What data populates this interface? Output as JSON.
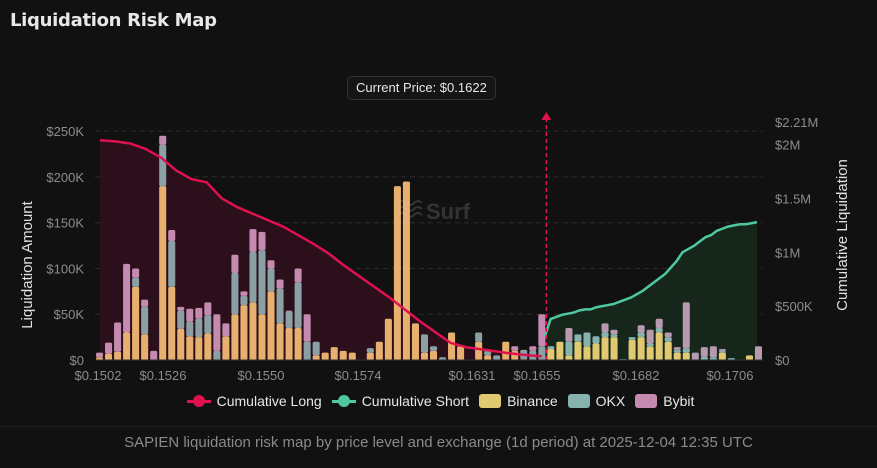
{
  "header": {
    "title": "Liquidation Risk Map"
  },
  "current_price": {
    "label": "Current Price: $0.1622",
    "value": 0.1622
  },
  "caption": "SAPIEN liquidation risk map by price level and exchange (1d period) at 2025-12-04 12:35 UTC",
  "watermark": "Surf",
  "colors": {
    "binance_long": "#e8b06f",
    "binance_short": "#e0c970",
    "okx": "#86b3ad",
    "okx_long": "#8aa0a5",
    "bybit": "#c48ab0",
    "bybit_short": "#b89ab0",
    "cum_long": "#e0114f",
    "cum_short": "#4ec9a0",
    "long_fill": "#2b0f1a",
    "short_fill": "#17261a"
  },
  "legend": [
    {
      "label": "Cumulative Long",
      "type": "line",
      "color": "#e0114f"
    },
    {
      "label": "Cumulative Short",
      "type": "line",
      "color": "#4ec9a0"
    },
    {
      "label": "Binance",
      "type": "box",
      "color": "#e0c970"
    },
    {
      "label": "OKX",
      "type": "box",
      "color": "#86b3ad"
    },
    {
      "label": "Bybit",
      "type": "box",
      "color": "#c48ab0"
    }
  ],
  "chart_data": {
    "type": "bar",
    "stacked": true,
    "title": "Liquidation Risk Map",
    "xlabel": "",
    "ylabel": "Liquidation Amount",
    "y2label": "Cumulative Liquidation",
    "ylim": [
      0,
      260000
    ],
    "y2lim": [
      0,
      2210000
    ],
    "yticks": [
      "$0",
      "$50K",
      "$100K",
      "$150K",
      "$200K",
      "$250K"
    ],
    "y2ticks": [
      "$0",
      "$500K",
      "$1M",
      "$1.5M",
      "$2M",
      "$2.21M"
    ],
    "xticks": [
      "$0.1502",
      "$0.1526",
      "$0.1550",
      "$0.1574",
      "$0.1631",
      "$0.1655",
      "$0.1682",
      "$0.1706"
    ],
    "current_price_index": 49,
    "series": [
      {
        "name": "Binance",
        "values": [
          3000,
          7000,
          9000,
          30000,
          80000,
          28000,
          0,
          190000,
          80000,
          34000,
          26000,
          25000,
          29000,
          0,
          26000,
          50000,
          60000,
          63000,
          50000,
          75000,
          40000,
          35000,
          35000,
          0,
          5000,
          8000,
          14000,
          10000,
          8000,
          0,
          8000,
          20000,
          45000,
          190000,
          195000,
          40000,
          8000,
          10000,
          0,
          30000,
          15000,
          0,
          20000,
          5000,
          0,
          20000,
          10000,
          1000,
          0,
          0,
          12000,
          20000,
          5000,
          20000,
          15000,
          18000,
          25000,
          25000,
          0,
          22000,
          25000,
          15000,
          30000,
          20000,
          8000,
          8000,
          0,
          0,
          0,
          8000,
          0,
          0,
          5000,
          0
        ]
      },
      {
        "name": "OKX",
        "values": [
          0,
          0,
          0,
          0,
          10000,
          30000,
          0,
          45000,
          50000,
          20000,
          16000,
          20000,
          20000,
          10000,
          0,
          45000,
          10000,
          55000,
          70000,
          25000,
          38000,
          18000,
          50000,
          20000,
          15000,
          0,
          0,
          0,
          0,
          0,
          5000,
          0,
          0,
          0,
          0,
          0,
          20000,
          5000,
          3000,
          0,
          0,
          0,
          10000,
          5000,
          5000,
          0,
          0,
          10000,
          10000,
          15000,
          3000,
          0,
          15000,
          8000,
          15000,
          8000,
          5000,
          3000,
          1000,
          3000,
          5000,
          3000,
          5000,
          5000,
          3000,
          5000,
          0,
          4000,
          3000,
          2000,
          2000,
          0,
          0,
          0
        ]
      },
      {
        "name": "Bybit",
        "values": [
          5000,
          12000,
          32000,
          75000,
          10000,
          8000,
          10000,
          10000,
          12000,
          4000,
          14000,
          12000,
          14000,
          40000,
          14000,
          20000,
          5000,
          25000,
          20000,
          9000,
          10000,
          1000,
          15000,
          30000,
          0,
          0,
          0,
          0,
          0,
          0,
          0,
          0,
          0,
          0,
          0,
          0,
          0,
          0,
          0,
          0,
          0,
          0,
          0,
          0,
          0,
          0,
          5000,
          0,
          5000,
          35000,
          0,
          0,
          15000,
          0,
          0,
          0,
          10000,
          5000,
          0,
          0,
          8000,
          15000,
          10000,
          5000,
          3000,
          50000,
          8000,
          10000,
          12000,
          2000,
          0,
          0,
          0,
          15000
        ]
      }
    ],
    "cumulative_long": [
      2040000,
      2030000,
      2010000,
      1960000,
      1880000,
      1760000,
      1680000,
      1650000,
      1500000,
      1420000,
      1360000,
      1300000,
      1240000,
      1160000,
      1080000,
      990000,
      880000,
      780000,
      680000,
      580000,
      470000,
      360000,
      260000,
      160000,
      120000,
      100000,
      80000,
      60000,
      45000,
      35000
    ],
    "cumulative_short": [
      220000,
      380000,
      400000,
      420000,
      430000,
      440000,
      460000,
      470000,
      470000,
      490000,
      500000,
      510000,
      520000,
      540000,
      560000,
      580000,
      610000,
      640000,
      680000,
      720000,
      760000,
      800000,
      860000,
      920000,
      1000000,
      1030000,
      1060000,
      1100000,
      1140000,
      1160000,
      1200000,
      1220000,
      1240000,
      1250000,
      1260000,
      1260000,
      1270000,
      1280000
    ]
  }
}
